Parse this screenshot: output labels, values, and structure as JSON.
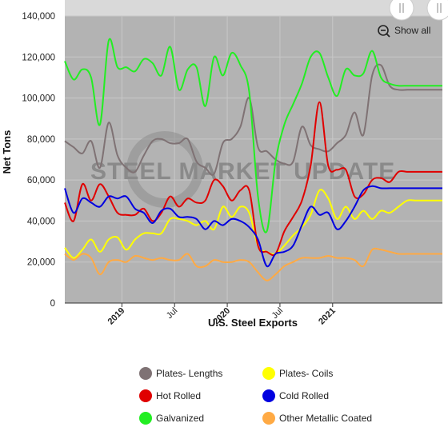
{
  "chart_data": {
    "type": "line",
    "title": "",
    "xlabel": "U.S. Steel Exports",
    "ylabel": "Net Tons",
    "ylim": [
      0,
      140000
    ],
    "yticks": [
      "0",
      "20,000",
      "40,000",
      "60,000",
      "80,000",
      "100,000",
      "120,000",
      "140,000"
    ],
    "xlim": [
      0,
      43
    ],
    "xticks": [
      {
        "label": "2019",
        "at": 6.5,
        "major": true
      },
      {
        "label": "Jul",
        "at": 12.5,
        "major": false
      },
      {
        "label": "2020",
        "at": 18.5,
        "major": true
      },
      {
        "label": "Jul",
        "at": 24.5,
        "major": false
      },
      {
        "label": "2021",
        "at": 30.5,
        "major": true
      }
    ],
    "grid": true,
    "legend_position": "bottom",
    "watermark": "STEEL MARKET UPDATE",
    "show_all_label": "Show all",
    "series": [
      {
        "name": "Plates- Lengths",
        "color": "#7f7274",
        "x": [
          0,
          1,
          2,
          3,
          4,
          5,
          6,
          7,
          8,
          9,
          10,
          11,
          12,
          13,
          14,
          15,
          16,
          17,
          18,
          19,
          20,
          21,
          22,
          23,
          24,
          25,
          26,
          27,
          28,
          29,
          30,
          31,
          32,
          33,
          34,
          35,
          36,
          37,
          38,
          39,
          40,
          41,
          42,
          43
        ],
        "values": [
          79000,
          76000,
          73000,
          79000,
          66000,
          88000,
          72000,
          66000,
          64000,
          72000,
          79000,
          80000,
          78000,
          78000,
          80000,
          69000,
          66000,
          63000,
          78000,
          80000,
          86000,
          100000,
          76000,
          74000,
          70000,
          68000,
          69000,
          86000,
          77000,
          75000,
          74000,
          78000,
          82000,
          93000,
          82000,
          111000,
          116000,
          106000,
          104000,
          104000,
          104000,
          104000,
          104000,
          104000
        ]
      },
      {
        "name": "Plates- Coils",
        "color": "#ffff00",
        "x": [
          0,
          1,
          2,
          3,
          4,
          5,
          6,
          7,
          8,
          9,
          10,
          11,
          12,
          13,
          14,
          15,
          16,
          17,
          18,
          19,
          20,
          21,
          22,
          23,
          24,
          25,
          26,
          27,
          28,
          29,
          30,
          31,
          32,
          33,
          34,
          35,
          36,
          37,
          38,
          39,
          40,
          41,
          42,
          43
        ],
        "values": [
          27000,
          22000,
          26000,
          31000,
          25000,
          31000,
          32000,
          26000,
          31000,
          34000,
          34000,
          34000,
          41000,
          41000,
          40000,
          38000,
          40000,
          36000,
          47000,
          42000,
          47000,
          44000,
          28000,
          25000,
          24000,
          28000,
          33000,
          37000,
          43000,
          55000,
          51000,
          41000,
          47000,
          41000,
          45000,
          41000,
          45000,
          44000,
          47000,
          50000,
          50000,
          50000,
          50000,
          50000
        ]
      },
      {
        "name": "Hot Rolled",
        "color": "#e00000",
        "x": [
          0,
          1,
          2,
          3,
          4,
          5,
          6,
          7,
          8,
          9,
          10,
          11,
          12,
          13,
          14,
          15,
          16,
          17,
          18,
          19,
          20,
          21,
          22,
          23,
          24,
          25,
          26,
          27,
          28,
          29,
          30,
          31,
          32,
          33,
          34,
          35,
          36,
          37,
          38,
          39,
          40,
          41,
          42,
          43
        ],
        "values": [
          49000,
          40000,
          58000,
          50000,
          58000,
          52000,
          44000,
          43000,
          43000,
          46000,
          40000,
          44000,
          52000,
          47000,
          51000,
          49000,
          50000,
          60000,
          57000,
          50000,
          55000,
          55000,
          28000,
          25000,
          24000,
          35000,
          42000,
          50000,
          67000,
          98000,
          67000,
          65000,
          65000,
          52000,
          53000,
          60000,
          61000,
          59000,
          64000,
          64000,
          64000,
          64000,
          64000,
          64000
        ]
      },
      {
        "name": "Cold Rolled",
        "color": "#0000e0",
        "x": [
          0,
          1,
          2,
          3,
          4,
          5,
          6,
          7,
          8,
          9,
          10,
          11,
          12,
          13,
          14,
          15,
          16,
          17,
          18,
          19,
          20,
          21,
          22,
          23,
          24,
          25,
          26,
          27,
          28,
          29,
          30,
          31,
          32,
          33,
          34,
          35,
          36,
          37,
          38,
          39,
          40,
          41,
          42,
          43
        ],
        "values": [
          56000,
          44000,
          51000,
          49000,
          47000,
          52000,
          51000,
          52000,
          46000,
          44000,
          39000,
          45000,
          46000,
          42000,
          42000,
          41000,
          36000,
          40000,
          38000,
          41000,
          40000,
          37000,
          31000,
          18000,
          24000,
          25000,
          28000,
          38000,
          47000,
          43000,
          44000,
          36000,
          40000,
          47000,
          55000,
          57000,
          56000,
          56000,
          56000,
          56000,
          56000,
          56000,
          56000,
          56000
        ]
      },
      {
        "name": "Galvanized",
        "color": "#22ee22",
        "x": [
          0,
          1,
          2,
          3,
          4,
          5,
          6,
          7,
          8,
          9,
          10,
          11,
          12,
          13,
          14,
          15,
          16,
          17,
          18,
          19,
          20,
          21,
          22,
          23,
          24,
          25,
          26,
          27,
          28,
          29,
          30,
          31,
          32,
          33,
          34,
          35,
          36,
          37,
          38,
          39,
          40,
          41,
          42,
          43
        ],
        "values": [
          118000,
          109000,
          114000,
          110000,
          87000,
          128000,
          115000,
          115000,
          113000,
          119000,
          117000,
          111000,
          125000,
          104000,
          114000,
          115000,
          96000,
          120000,
          111000,
          122000,
          116000,
          103000,
          52000,
          35000,
          69000,
          87000,
          97000,
          107000,
          120000,
          122000,
          110000,
          101000,
          114000,
          111000,
          112000,
          123000,
          110000,
          107000,
          106000,
          106000,
          106000,
          106000,
          106000,
          106000
        ]
      },
      {
        "name": "Other Metallic Coated",
        "color": "#ffaa44",
        "x": [
          0,
          1,
          2,
          3,
          4,
          5,
          6,
          7,
          8,
          9,
          10,
          11,
          12,
          13,
          14,
          15,
          16,
          17,
          18,
          19,
          20,
          21,
          22,
          23,
          24,
          25,
          26,
          27,
          28,
          29,
          30,
          31,
          32,
          33,
          34,
          35,
          36,
          37,
          38,
          39,
          40,
          41,
          42,
          43
        ],
        "values": [
          24000,
          21000,
          24000,
          22000,
          14000,
          20000,
          21000,
          20000,
          23000,
          22000,
          21000,
          22000,
          21000,
          21000,
          24000,
          18000,
          18000,
          21000,
          20000,
          20000,
          21000,
          20000,
          15000,
          11000,
          14000,
          18000,
          20000,
          22000,
          22000,
          22000,
          23000,
          22000,
          22000,
          21000,
          18000,
          26000,
          26000,
          25000,
          24000,
          24000,
          24000,
          24000,
          24000,
          24000
        ]
      }
    ]
  }
}
